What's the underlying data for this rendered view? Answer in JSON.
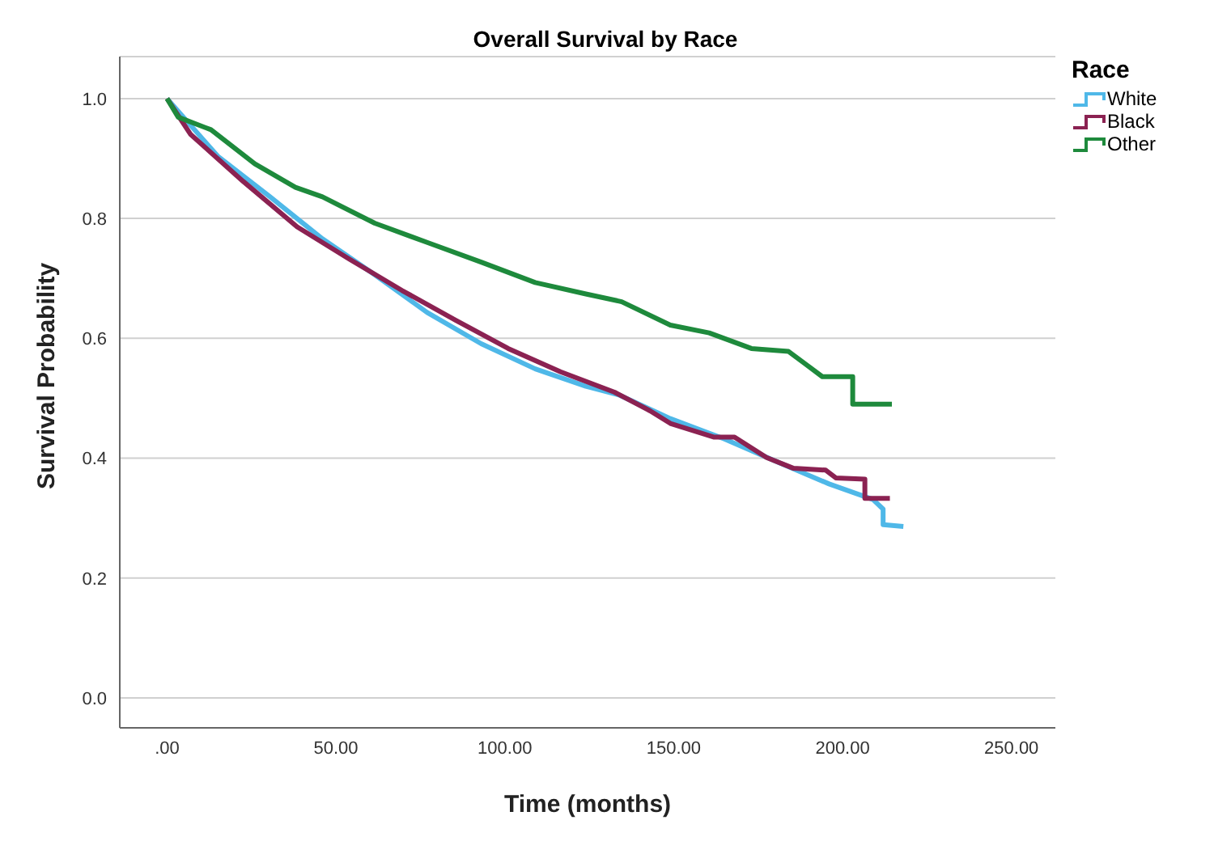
{
  "chart_data": {
    "type": "line",
    "title": "Overall Survival by Race",
    "xlabel": "Time (months)",
    "ylabel": "Survival Probability",
    "legend_title": "Race",
    "legend": "top right",
    "grid": "y",
    "marker": "none",
    "line_style": "solid",
    "xlim": [
      -14,
      263
    ],
    "xticks": [
      {
        "value": 0,
        "label": ".00"
      },
      {
        "value": 50,
        "label": "50.00"
      },
      {
        "value": 100,
        "label": "100.00"
      },
      {
        "value": 150,
        "label": "150.00"
      },
      {
        "value": 200,
        "label": "200.00"
      },
      {
        "value": 250,
        "label": "250.00"
      }
    ],
    "ylim": [
      -0.05,
      1.07
    ],
    "yticks": [
      {
        "value": 0,
        "label": "0.0"
      },
      {
        "value": 0.2,
        "label": "0.2"
      },
      {
        "value": 0.4,
        "label": "0.4"
      },
      {
        "value": 0.6,
        "label": "0.6"
      },
      {
        "value": 0.8,
        "label": "0.8"
      },
      {
        "value": 1,
        "label": "1.0"
      }
    ],
    "series": [
      {
        "name": "White",
        "color": "#4fb8e8",
        "x": [
          0,
          15,
          30.5,
          46,
          61.5,
          77,
          93,
          109,
          124,
          134,
          149,
          165,
          181,
          196,
          209,
          212,
          212,
          218
        ],
        "values": [
          1.0,
          0.904,
          0.836,
          0.766,
          0.706,
          0.643,
          0.591,
          0.549,
          0.52,
          0.505,
          0.466,
          0.432,
          0.393,
          0.357,
          0.331,
          0.315,
          0.289,
          0.286
        ]
      },
      {
        "name": "Black",
        "color": "#8b2252",
        "x": [
          0,
          7,
          22.5,
          38.5,
          54,
          69.5,
          85.5,
          101,
          116.5,
          132.5,
          143,
          149,
          162,
          168,
          177.5,
          185.5,
          195,
          198,
          206.6,
          206.6,
          214
        ],
        "values": [
          1.0,
          0.94,
          0.862,
          0.786,
          0.732,
          0.68,
          0.63,
          0.583,
          0.544,
          0.51,
          0.479,
          0.458,
          0.435,
          0.435,
          0.401,
          0.383,
          0.38,
          0.367,
          0.365,
          0.333,
          0.333
        ]
      },
      {
        "name": "Other",
        "color": "#1e8a3c",
        "x": [
          0,
          3.3,
          13,
          26,
          38,
          46,
          61.5,
          77,
          93,
          109,
          124,
          134.6,
          149,
          160.5,
          173,
          184,
          189,
          194,
          203,
          203,
          214.6
        ],
        "values": [
          1.0,
          0.969,
          0.948,
          0.891,
          0.852,
          0.836,
          0.792,
          0.76,
          0.727,
          0.693,
          0.674,
          0.661,
          0.622,
          0.609,
          0.583,
          0.578,
          0.557,
          0.536,
          0.536,
          0.49,
          0.49
        ]
      }
    ]
  }
}
